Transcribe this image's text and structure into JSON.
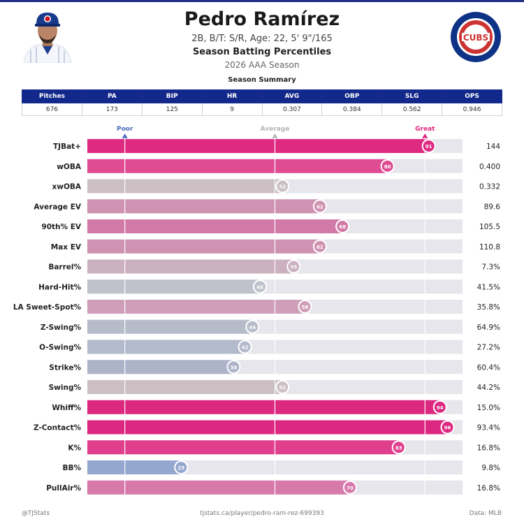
{
  "header": {
    "name": "Pedro Ramírez",
    "bio": "2B, B/T: S/R, Age: 22, 5' 9\"/165",
    "subtitle": "Season Batting Percentiles",
    "season": "2026 AAA Season",
    "logo_text": "CUBS"
  },
  "summary": {
    "title": "Season Summary",
    "columns": [
      "Pitches",
      "PA",
      "BIP",
      "HR",
      "AVG",
      "OBP",
      "SLG",
      "OPS"
    ],
    "values": [
      "676",
      "173",
      "125",
      "9",
      "0.307",
      "0.384",
      "0.562",
      "0.946"
    ]
  },
  "chart_data": {
    "type": "bar",
    "orientation": "horizontal",
    "xlim": [
      0,
      100
    ],
    "reference_labels": [
      {
        "label": "Poor",
        "value": 10,
        "color": "#4c6bbf"
      },
      {
        "label": "Average",
        "value": 50,
        "color": "#b5b5b5"
      },
      {
        "label": "Great",
        "value": 90,
        "color": "#e0257f"
      }
    ],
    "categories": [
      "TJBat+",
      "wOBA",
      "xwOBA",
      "Average EV",
      "90th% EV",
      "Max EV",
      "Barrel%",
      "Hard-Hit%",
      "LA Sweet-Spot%",
      "Z-Swing%",
      "O-Swing%",
      "Strike%",
      "Swing%",
      "Whiff%",
      "Z-Contact%",
      "K%",
      "BB%",
      "PullAir%"
    ],
    "percentiles": [
      91,
      80,
      52,
      62,
      68,
      62,
      55,
      46,
      58,
      44,
      42,
      39,
      52,
      94,
      96,
      83,
      25,
      70
    ],
    "stat_values": [
      "144",
      "0.400",
      "0.332",
      "89.6",
      "105.5",
      "110.8",
      "7.3%",
      "41.5%",
      "35.8%",
      "64.9%",
      "27.2%",
      "60.4%",
      "44.2%",
      "15.0%",
      "93.4%",
      "16.8%",
      "9.8%",
      "16.8%"
    ],
    "bar_colors": [
      "#df2a82",
      "#e04c93",
      "#cbbfc3",
      "#cf92b2",
      "#d27aa7",
      "#cf92b2",
      "#cbb1c0",
      "#bfc2cb",
      "#cf9fba",
      "#b7bccb",
      "#b3bacb",
      "#adb4c9",
      "#cbbfc3",
      "#dd2880",
      "#dc2880",
      "#df3f8c",
      "#94a7cf",
      "#d77aab"
    ],
    "track_color": "#e6e6ec"
  },
  "footer": {
    "left": "@TJStats",
    "center": "tjstats.ca/player/pedro-ram-rez-699393",
    "right": "Data: MLB"
  }
}
